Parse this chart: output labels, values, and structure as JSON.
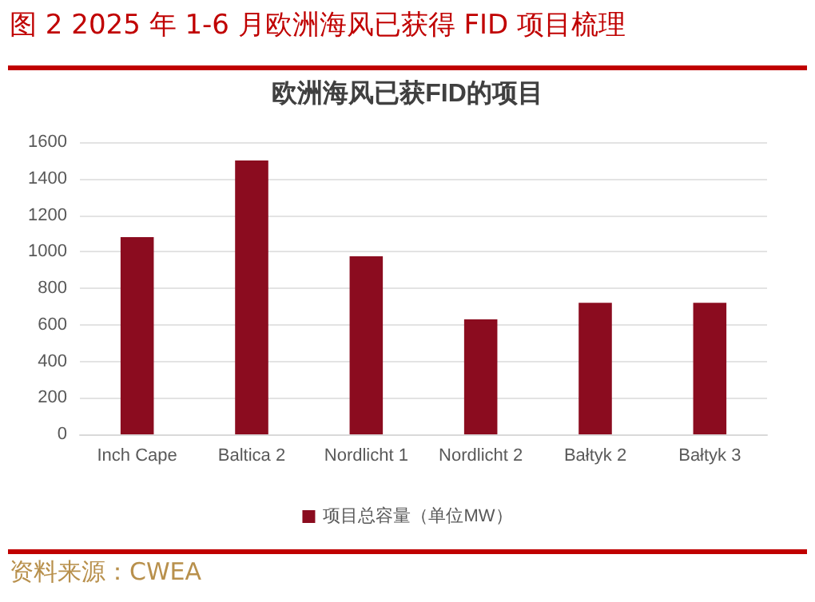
{
  "chart_data": {
    "type": "bar",
    "title": "图 2 2025 年 1-6 月欧洲海风已获得 FID 项目梳理",
    "subtitle": "欧洲海风已获FID的项目",
    "categories": [
      "Inch Cape",
      "Baltica 2",
      "Nordlicht 1",
      "Nordlicht 2",
      "Bałtyk 2",
      "Bałtyk 3"
    ],
    "series": [
      {
        "name": "项目总容量（单位MW）",
        "color": "#8b0c1f",
        "values": [
          1080,
          1500,
          975,
          630,
          720,
          720
        ]
      }
    ],
    "ylim": [
      0,
      1600
    ],
    "yticks": [
      0,
      200,
      400,
      600,
      800,
      1000,
      1200,
      1400,
      1600
    ],
    "grid": "y",
    "legend": "bottom",
    "annotations": [
      "资料来源：CWEA"
    ]
  }
}
